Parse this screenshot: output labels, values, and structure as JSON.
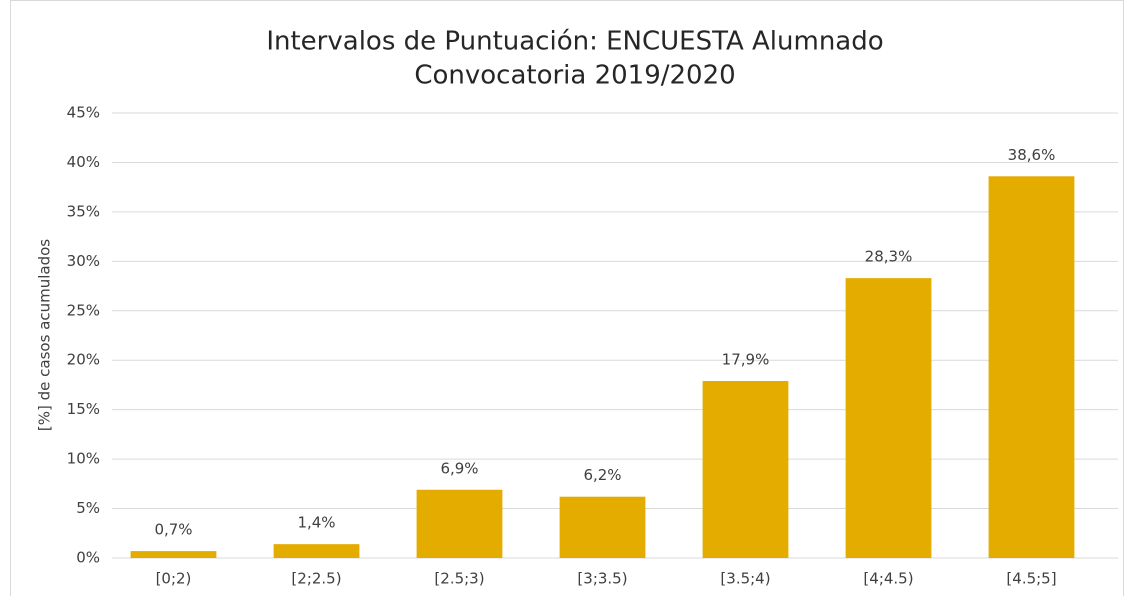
{
  "chart_data": {
    "type": "bar",
    "title": [
      "Intervalos de Puntuación: ENCUESTA Alumnado",
      "Convocatoria 2019/2020"
    ],
    "ylabel": "[%] de casos acumulados",
    "categories": [
      "[0;2)",
      "[2;2.5)",
      "[2.5;3)",
      "[3;3.5)",
      "[3.5;4)",
      "[4;4.5)",
      "[4.5;5]"
    ],
    "values": [
      0.7,
      1.4,
      6.9,
      6.2,
      17.9,
      28.3,
      38.6
    ],
    "value_labels": [
      "0,7%",
      "1,4%",
      "6,9%",
      "6,2%",
      "17,9%",
      "28,3%",
      "38,6%"
    ],
    "color": "#e5ac00",
    "ylim": [
      0,
      45
    ],
    "yticks": [
      {
        "value": 0,
        "label": "0%"
      },
      {
        "value": 5,
        "label": "5%"
      },
      {
        "value": 10,
        "label": "10%"
      },
      {
        "value": 15,
        "label": "15%"
      },
      {
        "value": 20,
        "label": "20%"
      },
      {
        "value": 25,
        "label": "25%"
      },
      {
        "value": 30,
        "label": "30%"
      },
      {
        "value": 35,
        "label": "35%"
      },
      {
        "value": 40,
        "label": "40%"
      },
      {
        "value": 45,
        "label": "45%"
      }
    ],
    "grid": true
  }
}
